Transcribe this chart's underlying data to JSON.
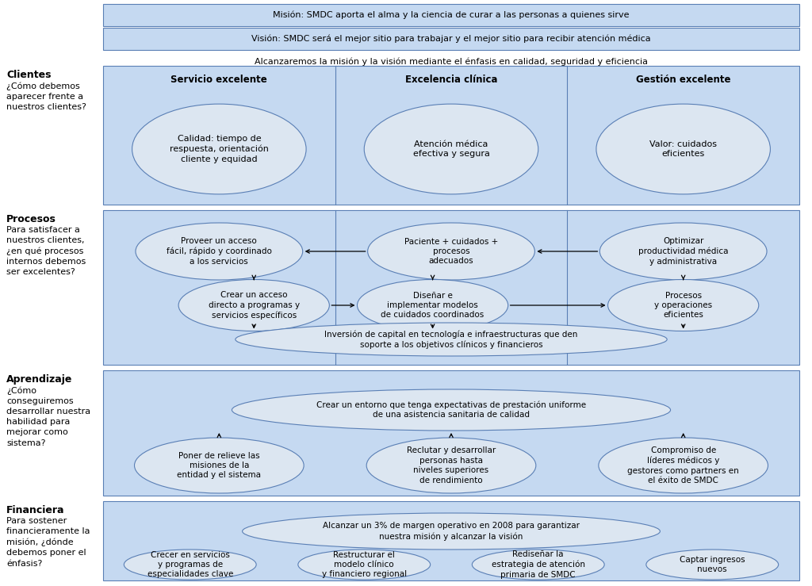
{
  "bg_color": "#ffffff",
  "light_blue": "#c5d9f1",
  "ellipse_fill": "#dce6f1",
  "border_color": "#5a7fb5",
  "text_color": "#000000",
  "mission_text": "Misión: SMDC aporta el alma y la ciencia de curar a las personas a quienes sirve",
  "vision_text": "Visión: SMDC será el mejor sitio para trabajar y el mejor sitio para recibir atención médica",
  "strategy_text": "Alcanzaremos la misión y la visión mediante el énfasis en calidad, seguridad y eficiencia",
  "col_headers": [
    "Servicio excelente",
    "Excelencia clínica",
    "Gestión excelente"
  ],
  "left_labels": [
    {
      "title": "Clientes",
      "desc": "¿Cómo debemos\naparecer frente a\nnuestros clientes?"
    },
    {
      "title": "Procesos",
      "desc": "Para satisfacer a\nnuestros clientes,\n¿en qué procesos\ninternos debemos\nser excelentes?"
    },
    {
      "title": "Aprendizaje",
      "desc": "¿Cómo\nconseguiremos\ndesarrollar nuestra\nhabilidad para\nmejorar como\nsistema?"
    },
    {
      "title": "Financiera",
      "desc": "Para sostener\nfinancieramente la\nmisión, ¿dónde\ndebemos poner el\nénfasis?"
    }
  ],
  "clientes_ellipses": [
    "Calidad: tiempo de\nrespuesta, orientación\ncliente y equidad",
    "Atención médica\nefectiva y segura",
    "Valor: cuidados\neficientes"
  ],
  "procesos_row1": [
    "Proveer un acceso\nfácil, rápido y coordinado\na los servicios",
    "Paciente + cuidados +\nprocesos\nadecuados",
    "Optimizar\nproductividad médica\ny administrativa"
  ],
  "procesos_row2": [
    "Crear un acceso\ndirecto a programas y\nservicios específicos",
    "Diseñar e\nimplementar modelos\nde cuidados coordinados",
    "Procesos\ny operaciones\neficientes"
  ],
  "procesos_bottom": "Inversión de capital en tecnología e infraestructuras que den\nsoporte a los objetivos clínicos y financieros",
  "apr_top": "Crear un entorno que tenga expectativas de prestación uniforme\nde una asistencia sanitaria de calidad",
  "apr_bottom": [
    "Poner de relieve las\nmisiones de la\nentidad y el sistema",
    "Reclutar y desarrollar\npersonas hasta\nniveles superiores\nde rendimiento",
    "Compromiso de\nlíderes médicos y\ngestores como partners en\nel éxito de SMDC"
  ],
  "fin_top": "Alcanzar un 3% de margen operativo en 2008 para garantizar\nnuestra misión y alcanzar la visión",
  "fin_bottom": [
    "Crecer en servicios\ny programas de\nespecialidades clave",
    "Restructurar el\nmodelo clínico\ny financiero regional",
    "Rediseñar la\nestrategia de atención\nprimaria de SMDC",
    "Captar ingresos\nnuevos"
  ]
}
